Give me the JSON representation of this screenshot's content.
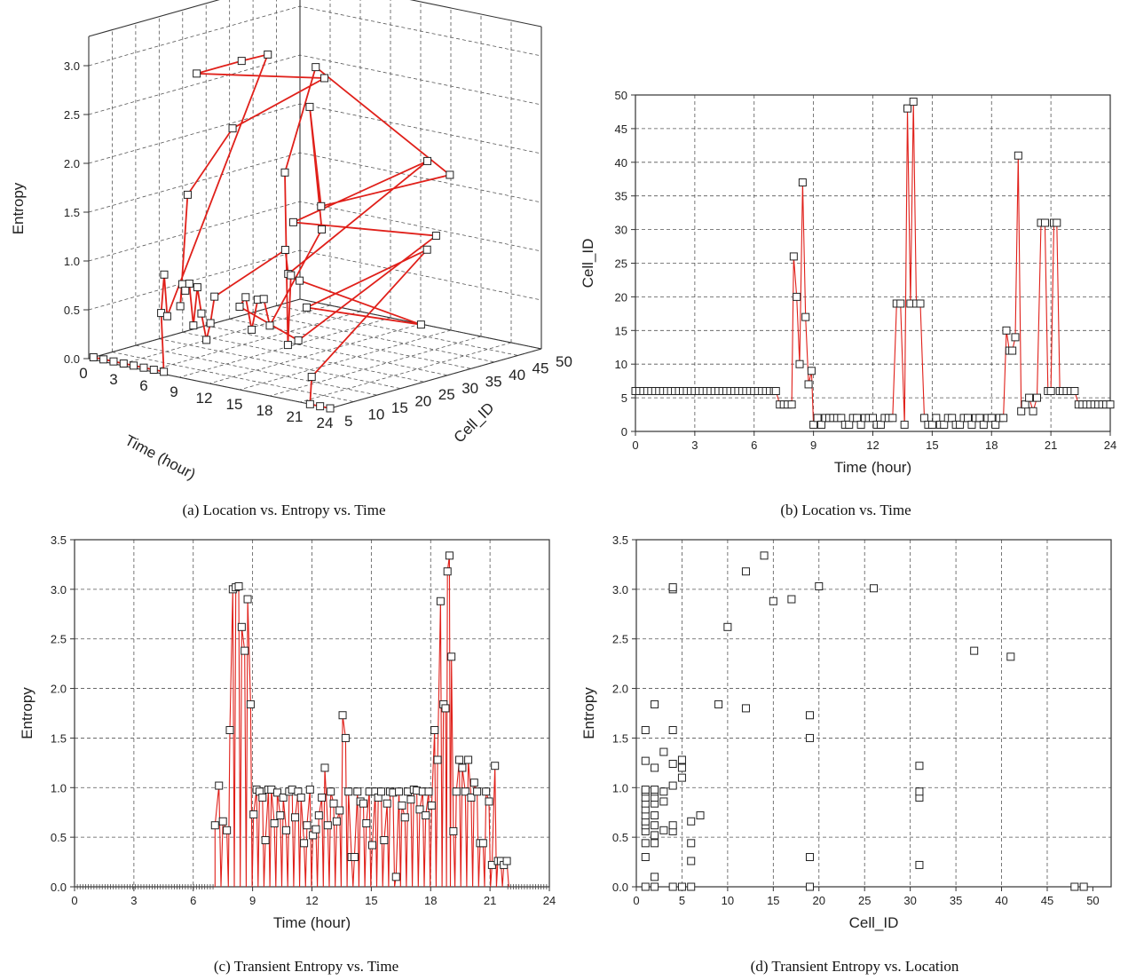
{
  "chart_data": [
    {
      "type": "scatter3d",
      "panel": "a",
      "caption": "(a) Location vs. Entropy vs. Time",
      "xlabel": "Time (hour)",
      "ylabel": "Cell_ID",
      "zlabel": "Entropy",
      "xlim": [
        0,
        24
      ],
      "ylim": [
        5,
        50
      ],
      "zlim": [
        0,
        3
      ],
      "xticks": [
        "0",
        "3",
        "6",
        "9",
        "12",
        "15",
        "18",
        "21",
        "24"
      ],
      "yticks": [
        "5",
        "10",
        "15",
        "20",
        "25",
        "30",
        "35",
        "40",
        "45",
        "50"
      ],
      "zticks": [
        "0.0",
        "0.5",
        "1.0",
        "1.5",
        "2.0",
        "2.5",
        "3.0"
      ],
      "grid": true,
      "points": [
        [
          0,
          6,
          0
        ],
        [
          1,
          6,
          0
        ],
        [
          2,
          6,
          0
        ],
        [
          3,
          6,
          0
        ],
        [
          4,
          6,
          0
        ],
        [
          5,
          6,
          0
        ],
        [
          6,
          6,
          0
        ],
        [
          7,
          6,
          0
        ],
        [
          7.2,
          4,
          0.62
        ],
        [
          7.5,
          4,
          1.02
        ],
        [
          7.8,
          4,
          0.6
        ],
        [
          8.0,
          26,
          3.0
        ],
        [
          8.2,
          20,
          3.02
        ],
        [
          8.4,
          10,
          3.03
        ],
        [
          8.5,
          37,
          2.62
        ],
        [
          8.7,
          17,
          2.38
        ],
        [
          8.9,
          7,
          1.84
        ],
        [
          9.1,
          1,
          0.73
        ],
        [
          9.3,
          2,
          0.96
        ],
        [
          9.6,
          2,
          0.9
        ],
        [
          10,
          2,
          0.98
        ],
        [
          10.4,
          1,
          0.56
        ],
        [
          10.8,
          2,
          0.96
        ],
        [
          11.2,
          2,
          0.7
        ],
        [
          11.7,
          1,
          0.44
        ],
        [
          12.1,
          2,
          0.62
        ],
        [
          12.5,
          1,
          0.9
        ],
        [
          13.0,
          19,
          1.2
        ],
        [
          13.3,
          19,
          0.96
        ],
        [
          13.6,
          48,
          1.73
        ],
        [
          13.8,
          19,
          1.5
        ],
        [
          14.0,
          49,
          0.96
        ],
        [
          14.3,
          19,
          0.3
        ],
        [
          15.0,
          1,
          0.85
        ],
        [
          15.6,
          2,
          0.96
        ],
        [
          16.2,
          1,
          0.64
        ],
        [
          16.8,
          2,
          0.96
        ],
        [
          17.4,
          1,
          0.98
        ],
        [
          18.0,
          2,
          0.72
        ],
        [
          18.5,
          15,
          1.58
        ],
        [
          18.7,
          12,
          2.88
        ],
        [
          18.9,
          14,
          1.84
        ],
        [
          19.1,
          41,
          1.8
        ],
        [
          19.3,
          12,
          3.34
        ],
        [
          19.5,
          5,
          2.32
        ],
        [
          19.8,
          4,
          0.56
        ],
        [
          20.1,
          5,
          1.28
        ],
        [
          20.5,
          6,
          1.22
        ],
        [
          20.9,
          31,
          0.44
        ],
        [
          21.2,
          6,
          0.96
        ],
        [
          21.5,
          31,
          1.22
        ],
        [
          21.7,
          6,
          0.26
        ],
        [
          22,
          4,
          0
        ],
        [
          23,
          4,
          0
        ],
        [
          24,
          4,
          0
        ]
      ]
    },
    {
      "type": "line",
      "panel": "b",
      "caption": "(b) Location vs. Time",
      "xlabel": "Time (hour)",
      "ylabel": "Cell_ID",
      "xlim": [
        0,
        24
      ],
      "ylim": [
        0,
        50
      ],
      "xticks": [
        0,
        3,
        6,
        9,
        12,
        15,
        18,
        21,
        24
      ],
      "yticks": [
        0,
        5,
        10,
        15,
        20,
        25,
        30,
        35,
        40,
        45,
        50
      ],
      "grid": true,
      "x": [
        0,
        0.2,
        0.4,
        0.6,
        0.8,
        1,
        1.2,
        1.4,
        1.6,
        1.8,
        2,
        2.2,
        2.4,
        2.6,
        2.8,
        3,
        3.2,
        3.4,
        3.6,
        3.8,
        4,
        4.2,
        4.4,
        4.6,
        4.8,
        5,
        5.2,
        5.4,
        5.6,
        5.8,
        6,
        6.2,
        6.4,
        6.6,
        6.8,
        7.0,
        7.1,
        7.3,
        7.5,
        7.7,
        7.9,
        8.0,
        8.15,
        8.3,
        8.45,
        8.6,
        8.75,
        8.9,
        9.0,
        9.2,
        9.4,
        9.6,
        9.8,
        10.0,
        10.2,
        10.4,
        10.6,
        10.8,
        11.0,
        11.2,
        11.4,
        11.6,
        11.8,
        12.0,
        12.2,
        12.4,
        12.6,
        12.8,
        13.0,
        13.2,
        13.4,
        13.6,
        13.75,
        13.9,
        14.05,
        14.2,
        14.4,
        14.6,
        14.8,
        15.0,
        15.2,
        15.4,
        15.6,
        15.8,
        16.0,
        16.2,
        16.4,
        16.6,
        16.8,
        17.0,
        17.2,
        17.4,
        17.6,
        17.8,
        18.0,
        18.2,
        18.4,
        18.6,
        18.75,
        18.9,
        19.05,
        19.2,
        19.35,
        19.5,
        19.7,
        19.9,
        20.1,
        20.3,
        20.5,
        20.7,
        20.85,
        21.0,
        21.15,
        21.3,
        21.45,
        21.6,
        21.8,
        22.0,
        22.2,
        22.4,
        22.6,
        22.8,
        23.0,
        23.2,
        23.4,
        23.6,
        23.8,
        24.0
      ],
      "values": [
        6,
        6,
        6,
        6,
        6,
        6,
        6,
        6,
        6,
        6,
        6,
        6,
        6,
        6,
        6,
        6,
        6,
        6,
        6,
        6,
        6,
        6,
        6,
        6,
        6,
        6,
        6,
        6,
        6,
        6,
        6,
        6,
        6,
        6,
        6,
        6,
        6,
        4,
        4,
        4,
        4,
        26,
        20,
        10,
        37,
        17,
        7,
        9,
        1,
        2,
        1,
        2,
        2,
        2,
        2,
        2,
        1,
        1,
        2,
        2,
        1,
        2,
        2,
        2,
        1,
        1,
        2,
        2,
        2,
        19,
        19,
        1,
        48,
        19,
        49,
        19,
        19,
        2,
        1,
        1,
        2,
        1,
        1,
        2,
        2,
        1,
        1,
        2,
        2,
        1,
        2,
        2,
        1,
        2,
        2,
        1,
        2,
        2,
        15,
        12,
        12,
        14,
        41,
        3,
        4,
        5,
        3,
        5,
        31,
        31,
        6,
        6,
        31,
        31,
        6,
        6,
        6,
        6,
        6,
        4,
        4,
        4,
        4,
        4,
        4,
        4,
        4,
        4
      ]
    },
    {
      "type": "line",
      "panel": "c",
      "caption": "(c) Transient Entropy vs. Time",
      "xlabel": "Time (hour)",
      "ylabel": "Entropy",
      "xlim": [
        0,
        24
      ],
      "ylim": [
        0,
        3.5
      ],
      "xticks": [
        0,
        3,
        6,
        9,
        12,
        15,
        18,
        21,
        24
      ],
      "yticks": [
        "0.0",
        "0.5",
        "1.0",
        "1.5",
        "2.0",
        "2.5",
        "3.0",
        "3.5"
      ],
      "grid": true,
      "x": [
        7.1,
        7.3,
        7.5,
        7.7,
        7.85,
        8.0,
        8.15,
        8.3,
        8.45,
        8.6,
        8.75,
        8.9,
        9.05,
        9.2,
        9.35,
        9.5,
        9.65,
        9.8,
        9.95,
        10.1,
        10.25,
        10.4,
        10.55,
        10.7,
        10.85,
        11.0,
        11.15,
        11.3,
        11.45,
        11.6,
        11.75,
        11.9,
        12.05,
        12.2,
        12.35,
        12.5,
        12.65,
        12.8,
        12.95,
        13.1,
        13.25,
        13.4,
        13.55,
        13.7,
        13.85,
        14.0,
        14.15,
        14.3,
        14.45,
        14.6,
        14.75,
        14.9,
        15.05,
        15.2,
        15.35,
        15.5,
        15.65,
        15.8,
        15.95,
        16.1,
        16.25,
        16.4,
        16.55,
        16.7,
        16.85,
        17.0,
        17.15,
        17.3,
        17.45,
        17.6,
        17.75,
        17.9,
        18.05,
        18.2,
        18.35,
        18.5,
        18.65,
        18.75,
        18.85,
        18.95,
        19.05,
        19.15,
        19.3,
        19.45,
        19.6,
        19.75,
        19.9,
        20.05,
        20.2,
        20.35,
        20.5,
        20.65,
        20.8,
        20.95,
        21.1,
        21.25,
        21.4,
        21.55,
        21.7,
        21.85
      ],
      "values": [
        0.62,
        1.02,
        0.66,
        0.57,
        1.58,
        3.0,
        3.02,
        3.03,
        2.62,
        2.38,
        2.9,
        1.84,
        0.73,
        0.98,
        0.96,
        0.9,
        0.47,
        0.98,
        0.98,
        0.64,
        0.95,
        0.72,
        0.9,
        0.57,
        0.96,
        0.98,
        0.7,
        0.96,
        0.9,
        0.44,
        0.62,
        0.98,
        0.52,
        0.58,
        0.72,
        0.9,
        1.2,
        0.62,
        0.96,
        0.84,
        0.66,
        0.77,
        1.73,
        1.5,
        0.96,
        0.3,
        0.3,
        0.96,
        0.86,
        0.84,
        0.64,
        0.96,
        0.42,
        0.96,
        0.9,
        0.96,
        0.47,
        0.84,
        0.96,
        0.95,
        0.1,
        0.96,
        0.82,
        0.7,
        0.96,
        0.88,
        0.98,
        0.97,
        0.78,
        0.96,
        0.72,
        0.96,
        0.82,
        1.58,
        1.28,
        2.88,
        1.84,
        1.8,
        3.18,
        3.34,
        2.32,
        0.56,
        0.96,
        1.28,
        1.2,
        0.96,
        1.28,
        0.9,
        1.05,
        0.96,
        0.44,
        0.44,
        0.96,
        0.86,
        0.22,
        1.22,
        0.26,
        0.26,
        0.22,
        0.26
      ],
      "zero_markers_x_ranges": [
        [
          0,
          7.1
        ],
        [
          21.9,
          24
        ]
      ]
    },
    {
      "type": "scatter",
      "panel": "d",
      "caption": "(d) Transient Entropy vs. Location",
      "xlabel": "Cell_ID",
      "ylabel": "Entropy",
      "xlim": [
        0,
        52
      ],
      "ylim": [
        0,
        3.5
      ],
      "xticks": [
        0,
        5,
        10,
        15,
        20,
        25,
        30,
        35,
        40,
        45,
        50
      ],
      "yticks": [
        "0.0",
        "0.5",
        "1.0",
        "1.5",
        "2.0",
        "2.5",
        "3.0",
        "3.5"
      ],
      "grid": true,
      "points": [
        [
          1,
          0
        ],
        [
          1,
          0.3
        ],
        [
          1,
          0.44
        ],
        [
          1,
          0.56
        ],
        [
          1,
          0.62
        ],
        [
          1,
          0.66
        ],
        [
          1,
          0.72
        ],
        [
          1,
          0.78
        ],
        [
          1,
          0.84
        ],
        [
          1,
          0.9
        ],
        [
          1,
          0.96
        ],
        [
          1,
          0.98
        ],
        [
          1,
          1.27
        ],
        [
          1,
          1.58
        ],
        [
          2,
          0
        ],
        [
          2,
          0.1
        ],
        [
          2,
          0.44
        ],
        [
          2,
          0.52
        ],
        [
          2,
          0.62
        ],
        [
          2,
          0.72
        ],
        [
          2,
          0.84
        ],
        [
          2,
          0.9
        ],
        [
          2,
          0.96
        ],
        [
          2,
          0.98
        ],
        [
          2,
          1.2
        ],
        [
          2,
          1.84
        ],
        [
          3,
          0.57
        ],
        [
          3,
          0.86
        ],
        [
          3,
          0.96
        ],
        [
          3,
          1.36
        ],
        [
          4,
          0
        ],
        [
          4,
          0.56
        ],
        [
          4,
          0.62
        ],
        [
          4,
          1.02
        ],
        [
          4,
          1.24
        ],
        [
          4,
          1.58
        ],
        [
          4,
          3.0
        ],
        [
          4,
          3.02
        ],
        [
          5,
          0
        ],
        [
          5,
          1.1
        ],
        [
          5,
          1.2
        ],
        [
          5,
          1.28
        ],
        [
          6,
          0
        ],
        [
          6,
          0.26
        ],
        [
          6,
          0.44
        ],
        [
          6,
          0.66
        ],
        [
          7,
          0.72
        ],
        [
          9,
          1.84
        ],
        [
          10,
          2.62
        ],
        [
          12,
          1.8
        ],
        [
          12,
          3.18
        ],
        [
          14,
          3.34
        ],
        [
          15,
          2.88
        ],
        [
          17,
          2.9
        ],
        [
          19,
          0
        ],
        [
          19,
          0.3
        ],
        [
          19,
          1.5
        ],
        [
          19,
          1.73
        ],
        [
          20,
          3.03
        ],
        [
          26,
          3.01
        ],
        [
          31,
          0.22
        ],
        [
          31,
          0.9
        ],
        [
          31,
          0.96
        ],
        [
          31,
          1.22
        ],
        [
          37,
          2.38
        ],
        [
          41,
          2.32
        ],
        [
          48,
          0
        ],
        [
          49,
          0
        ]
      ]
    }
  ]
}
